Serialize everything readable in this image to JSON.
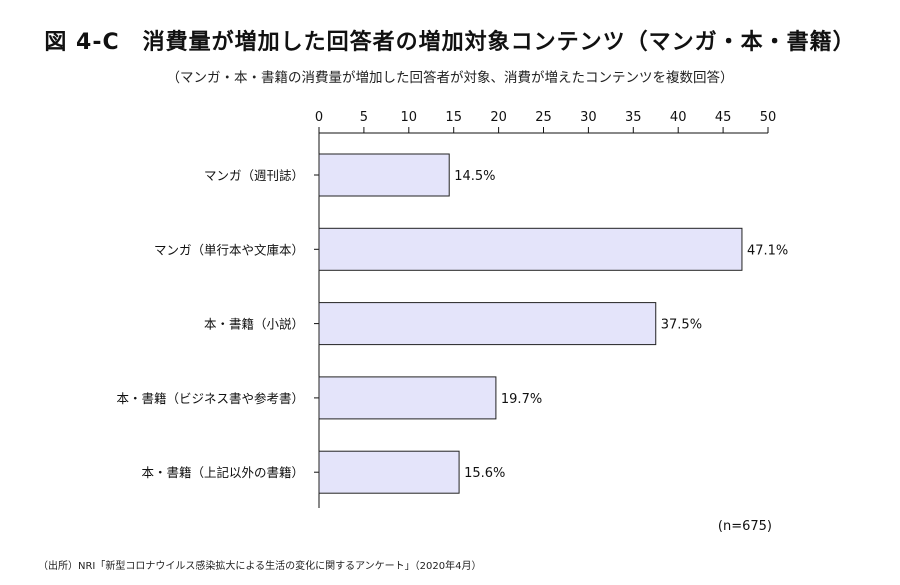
{
  "title": "図 4-C　消費量が増加した回答者の増加対象コンテンツ（マンガ・本・書籍）",
  "subtitle": "（マンガ・本・書籍の消費量が増加した回答者が対象、消費が増えたコンテンツを複数回答）",
  "sample_note": "(n=675)",
  "source": "（出所）NRI「新型コロナウイルス感染拡大による生活の変化に関するアンケート」（2020年4月）",
  "colors": {
    "bar_fill": "#e4e4fa",
    "bar_stroke": "#222222",
    "axis": "#111111"
  },
  "chart_data": {
    "type": "bar",
    "orientation": "horizontal",
    "title": "図 4-C　消費量が増加した回答者の増加対象コンテンツ（マンガ・本・書籍）",
    "xlabel": "",
    "ylabel": "",
    "xlim": [
      0,
      50
    ],
    "ticks": [
      0,
      5,
      10,
      15,
      20,
      25,
      30,
      35,
      40,
      45,
      50
    ],
    "tick_labels": [
      "0",
      "5",
      "10",
      "15",
      "20",
      "25",
      "30",
      "35",
      "40",
      "45",
      "50"
    ],
    "categories": [
      "マンガ（週刊誌）",
      "マンガ（単行本や文庫本）",
      "本・書籍（小説）",
      "本・書籍（ビジネス書や参考書）",
      "本・書籍（上記以外の書籍）"
    ],
    "values": [
      14.5,
      47.1,
      37.5,
      19.7,
      15.6
    ],
    "value_labels": [
      "14.5%",
      "47.1%",
      "37.5%",
      "19.7%",
      "15.6%"
    ],
    "grid": false
  }
}
